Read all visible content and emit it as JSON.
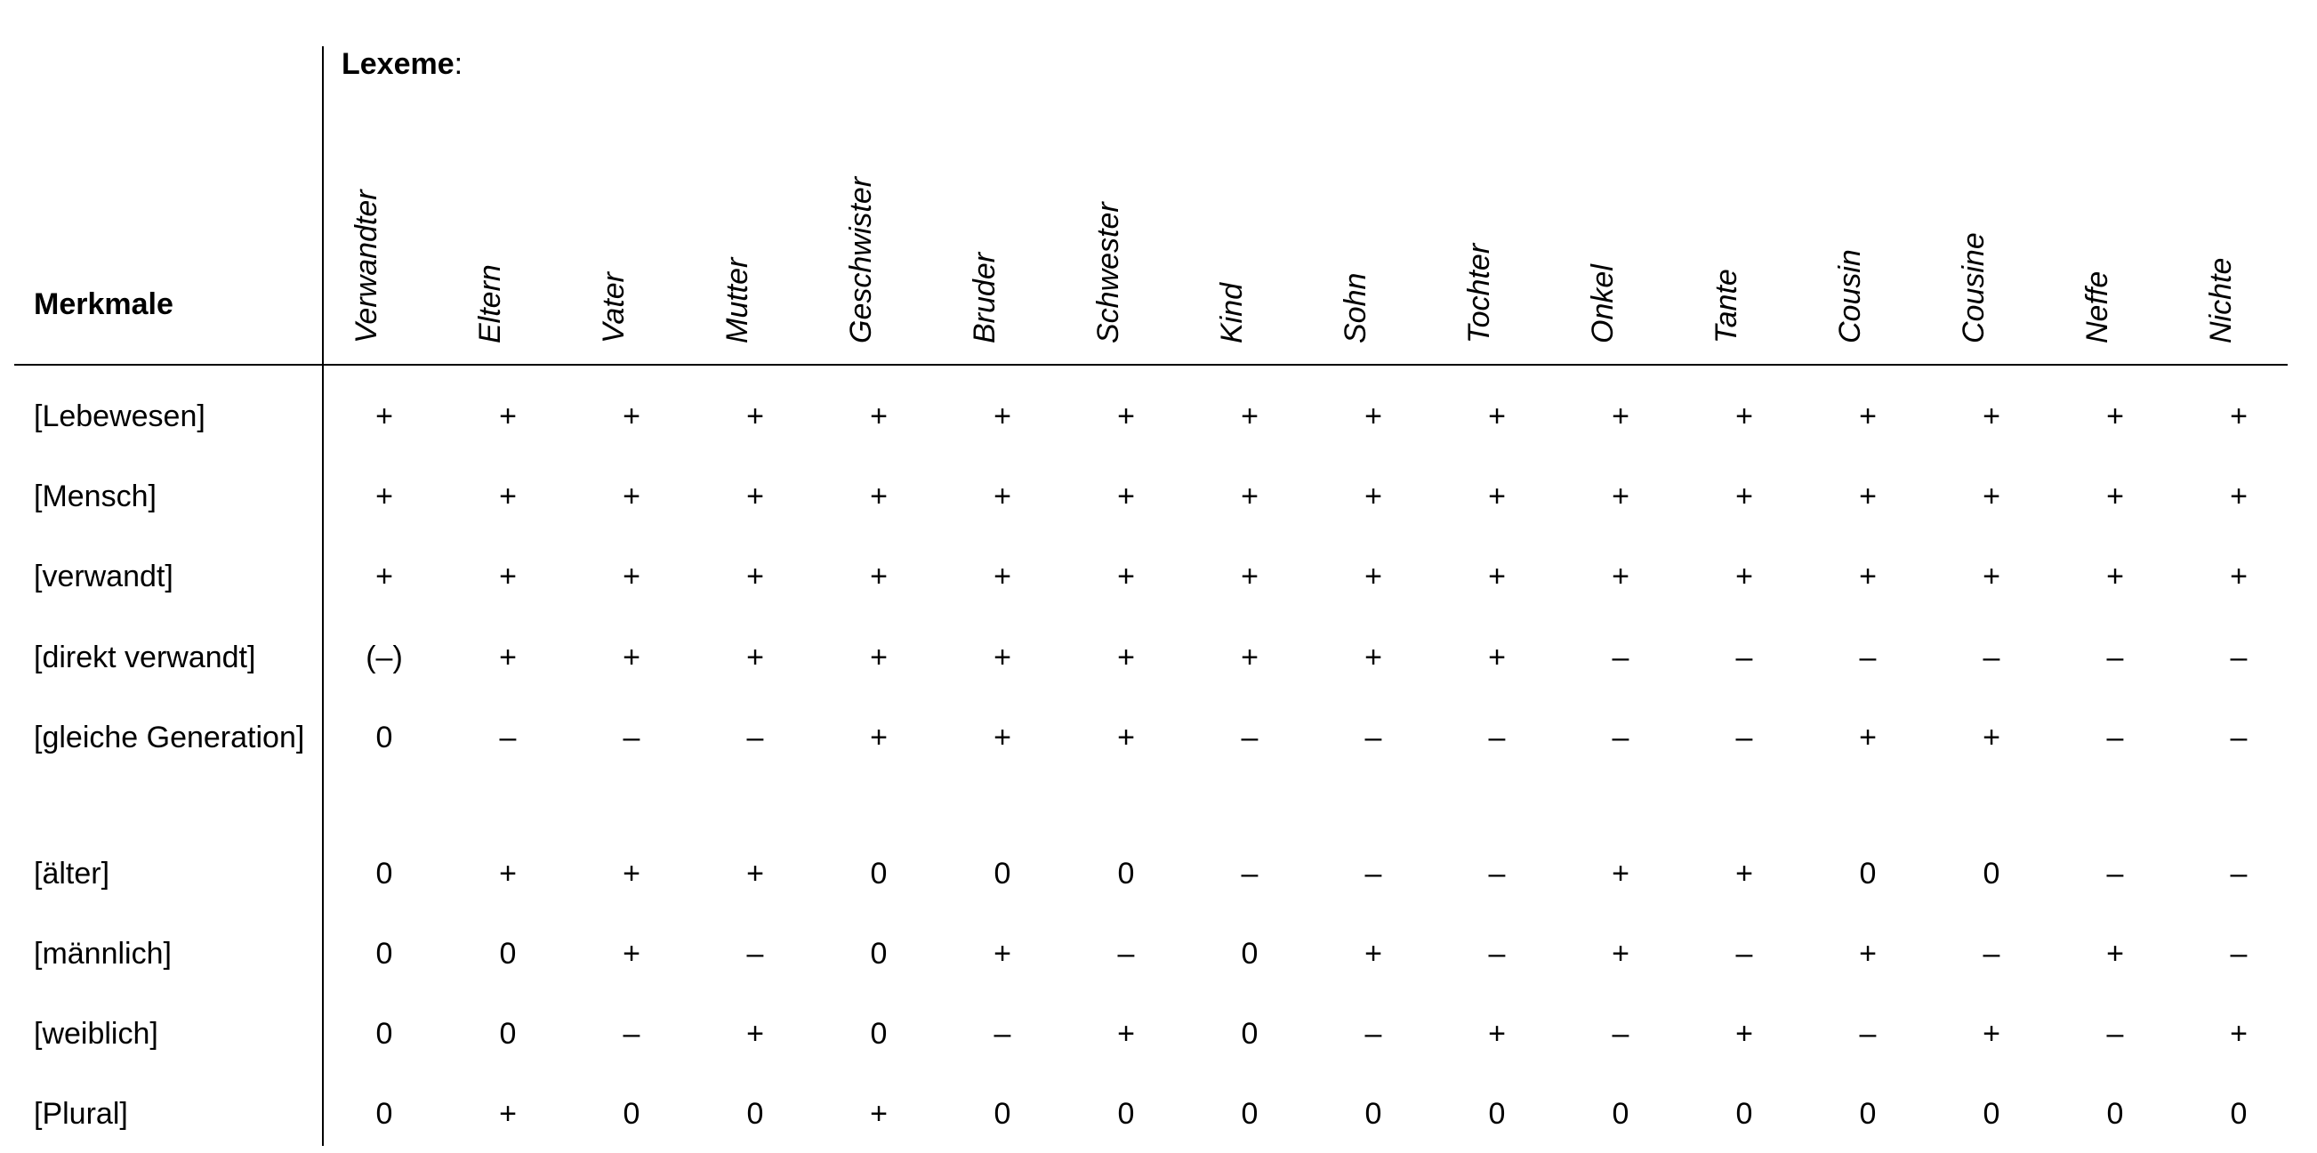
{
  "table": {
    "lexeme_heading": "Lexeme",
    "lexeme_heading_suffix": ":",
    "feature_heading": "Merkmale",
    "columns": [
      "Verwandter",
      "Eltern",
      "Vater",
      "Mutter",
      "Geschwister",
      "Bruder",
      "Schwester",
      "Kind",
      "Sohn",
      "Tochter",
      "Onkel",
      "Tante",
      "Cousin",
      "Cousine",
      "Neffe",
      "Nichte"
    ],
    "rows": [
      {
        "label": "[Lebewesen]",
        "values": [
          "+",
          "+",
          "+",
          "+",
          "+",
          "+",
          "+",
          "+",
          "+",
          "+",
          "+",
          "+",
          "+",
          "+",
          "+",
          "+"
        ]
      },
      {
        "label": "[Mensch]",
        "values": [
          "+",
          "+",
          "+",
          "+",
          "+",
          "+",
          "+",
          "+",
          "+",
          "+",
          "+",
          "+",
          "+",
          "+",
          "+",
          "+"
        ]
      },
      {
        "label": "[verwandt]",
        "values": [
          "+",
          "+",
          "+",
          "+",
          "+",
          "+",
          "+",
          "+",
          "+",
          "+",
          "+",
          "+",
          "+",
          "+",
          "+",
          "+"
        ]
      },
      {
        "label": "[direkt verwandt]",
        "values": [
          "(–)",
          "+",
          "+",
          "+",
          "+",
          "+",
          "+",
          "+",
          "+",
          "+",
          "–",
          "–",
          "–",
          "–",
          "–",
          "–"
        ]
      },
      {
        "label": "[gleiche Generation]",
        "values": [
          "0",
          "–",
          "–",
          "–",
          "+",
          "+",
          "+",
          "–",
          "–",
          "–",
          "–",
          "–",
          "+",
          "+",
          "–",
          "–"
        ]
      },
      {
        "label": "[älter]",
        "values": [
          "0",
          "+",
          "+",
          "+",
          "0",
          "0",
          "0",
          "–",
          "–",
          "–",
          "+",
          "+",
          "0",
          "0",
          "–",
          "–"
        ]
      },
      {
        "label": "[männlich]",
        "values": [
          "0",
          "0",
          "+",
          "–",
          "0",
          "+",
          "–",
          "0",
          "+",
          "–",
          "+",
          "–",
          "+",
          "–",
          "+",
          "–"
        ]
      },
      {
        "label": "[weiblich]",
        "values": [
          "0",
          "0",
          "–",
          "+",
          "0",
          "–",
          "+",
          "0",
          "–",
          "+",
          "–",
          "+",
          "–",
          "+",
          "–",
          "+"
        ]
      },
      {
        "label": "[Plural]",
        "values": [
          "0",
          "+",
          "0",
          "0",
          "+",
          "0",
          "0",
          "0",
          "0",
          "0",
          "0",
          "0",
          "0",
          "0",
          "0",
          "0"
        ]
      }
    ]
  }
}
